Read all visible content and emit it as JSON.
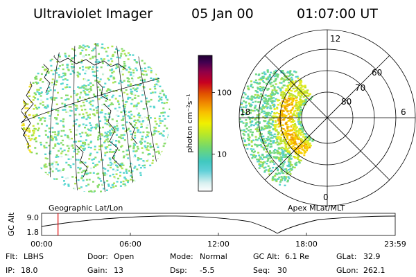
{
  "header": {
    "title": "Ultraviolet Imager",
    "date": "05 Jan 00",
    "time": "01:07:00 UT"
  },
  "left_panel": {
    "caption": "Geographic Lat/Lon"
  },
  "colorbar": {
    "unit_label": "photon cm⁻²s⁻¹",
    "ticks": [
      {
        "label": "100",
        "value": 100
      },
      {
        "label": "10",
        "value": 10
      }
    ],
    "colors": [
      "#ffffff",
      "#d8f0f0",
      "#80e0e8",
      "#40c8c8",
      "#60d890",
      "#90e060",
      "#c8e820",
      "#f0f000",
      "#f8c800",
      "#f09000",
      "#e86000",
      "#d83010",
      "#c00020",
      "#900040",
      "#500060",
      "#200040"
    ]
  },
  "right_panel": {
    "caption": "Apex MLat/MLT",
    "lat_labels": [
      "80",
      "70",
      "60"
    ],
    "mlt_labels": {
      "top": "12",
      "left": "18",
      "right": "6",
      "bottom": "0"
    }
  },
  "timeline": {
    "ylabel": "GC Alt",
    "y_ticks": [
      "9.0",
      "1.8"
    ],
    "x_ticks": [
      "00:00",
      "06:00",
      "12:00",
      "18:00",
      "23:59"
    ],
    "marker_time": "01:07"
  },
  "info": {
    "row1": [
      {
        "label": "Flt:",
        "value": "LBHS"
      },
      {
        "label": "Door:",
        "value": "Open"
      },
      {
        "label": "Mode:",
        "value": "Normal"
      },
      {
        "label": "GC Alt:",
        "value": "6.1 Re"
      },
      {
        "label": "GLat:",
        "value": "32.9"
      }
    ],
    "row2": [
      {
        "label": "IP:",
        "value": "18.0"
      },
      {
        "label": "Gain:",
        "value": "13"
      },
      {
        "label": "Dsp:",
        "value": "-5.5"
      },
      {
        "label": "Seq:",
        "value": "30"
      },
      {
        "label": "GLon:",
        "value": "262.1"
      }
    ]
  },
  "colors": {
    "marker": "#e00000"
  }
}
